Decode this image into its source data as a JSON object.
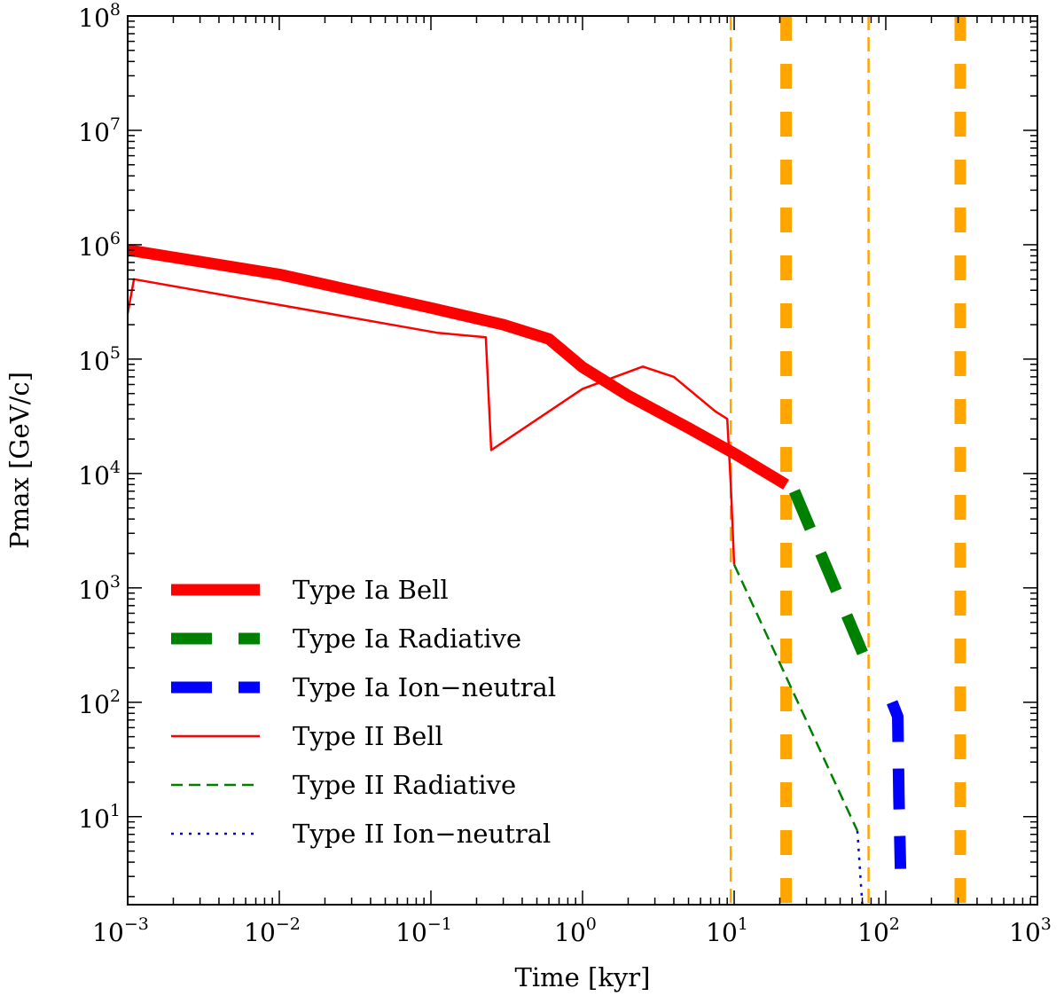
{
  "chart_data": {
    "type": "line",
    "xlabel": "Time [kyr]",
    "ylabel": "Pmax [GeV/c]",
    "x_scale": "log",
    "y_scale": "log",
    "xlim": [
      0.001,
      1000
    ],
    "ylim": [
      1.7,
      100000000
    ],
    "x_ticks": [
      {
        "base": "10",
        "exp": "−3",
        "value": 0.001
      },
      {
        "base": "10",
        "exp": "−2",
        "value": 0.01
      },
      {
        "base": "10",
        "exp": "−1",
        "value": 0.1
      },
      {
        "base": "10",
        "exp": "0",
        "value": 1
      },
      {
        "base": "10",
        "exp": "1",
        "value": 10
      },
      {
        "base": "10",
        "exp": "2",
        "value": 100
      },
      {
        "base": "10",
        "exp": "3",
        "value": 1000
      }
    ],
    "y_ticks": [
      {
        "base": "10",
        "exp": "1",
        "value": 10
      },
      {
        "base": "10",
        "exp": "2",
        "value": 100
      },
      {
        "base": "10",
        "exp": "3",
        "value": 1000
      },
      {
        "base": "10",
        "exp": "4",
        "value": 10000
      },
      {
        "base": "10",
        "exp": "5",
        "value": 100000
      },
      {
        "base": "10",
        "exp": "6",
        "value": 1000000
      },
      {
        "base": "10",
        "exp": "7",
        "value": 10000000
      },
      {
        "base": "10",
        "exp": "8",
        "value": 100000000
      }
    ],
    "grid": false,
    "legend_position": "bottom-left",
    "series": [
      {
        "name": "Type Ia Bell",
        "color": "#ff0000",
        "style": "solid",
        "weight": "thick",
        "points": [
          [
            0.001,
            900000
          ],
          [
            0.01,
            550000
          ],
          [
            0.1,
            280000
          ],
          [
            0.3,
            200000
          ],
          [
            0.6,
            150000
          ],
          [
            1.0,
            85000
          ],
          [
            2.0,
            48000
          ],
          [
            5.0,
            25000
          ],
          [
            10.0,
            15000
          ],
          [
            22.0,
            8000
          ]
        ]
      },
      {
        "name": "Type Ia Radiative",
        "color": "#008000",
        "style": "dashed",
        "weight": "thick",
        "points": [
          [
            25.0,
            7000
          ],
          [
            80.0,
            180
          ]
        ]
      },
      {
        "name": "Type Ia Ion−neutral",
        "color": "#0000ff",
        "style": "dashed",
        "weight": "thick",
        "points": [
          [
            110.0,
            100
          ],
          [
            120.0,
            75
          ],
          [
            122.0,
            15
          ],
          [
            125.0,
            3.5
          ]
        ]
      },
      {
        "name": "Type II Bell",
        "color": "#ff0000",
        "style": "solid",
        "weight": "thin",
        "points": [
          [
            0.001,
            250000
          ],
          [
            0.0011,
            500000
          ],
          [
            0.11,
            170000
          ],
          [
            0.23,
            155000
          ],
          [
            0.235,
            85000
          ],
          [
            0.25,
            16000
          ],
          [
            1.0,
            55000
          ],
          [
            2.5,
            86000
          ],
          [
            4.0,
            70000
          ],
          [
            7.5,
            35000
          ],
          [
            9.0,
            30000
          ],
          [
            9.5,
            8000
          ],
          [
            10.0,
            1600
          ]
        ]
      },
      {
        "name": "Type II Radiative",
        "color": "#008000",
        "style": "dashed",
        "weight": "thin",
        "points": [
          [
            10.0,
            1600
          ],
          [
            65.0,
            7.5
          ]
        ]
      },
      {
        "name": "Type II Ion−neutral",
        "color": "#0000ff",
        "style": "dotted",
        "weight": "thin",
        "points": [
          [
            65.0,
            7.5
          ],
          [
            70.0,
            1.7
          ]
        ]
      }
    ],
    "reference_lines": [
      {
        "x": 9.5,
        "color": "#ffa500",
        "style": "dashed",
        "weight": "thin"
      },
      {
        "x": 77.0,
        "color": "#ffa500",
        "style": "dashed",
        "weight": "thin"
      },
      {
        "x": 22.0,
        "color": "#ffa500",
        "style": "dashed",
        "weight": "thick"
      },
      {
        "x": 310.0,
        "color": "#ffa500",
        "style": "dashed",
        "weight": "thick"
      }
    ]
  }
}
